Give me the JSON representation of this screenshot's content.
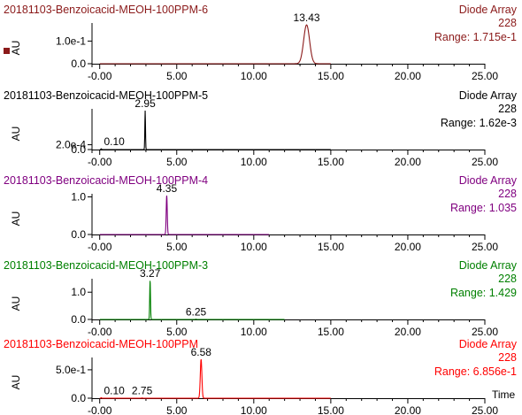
{
  "x_axis_label": "Time",
  "chart_data": [
    {
      "type": "line",
      "title": "20181103-Benzoicacid-MEOH-100PPM-6",
      "detector": "Diode Array",
      "wavelength": "228",
      "range": "Range: 1.715e-1",
      "ylabel": "AU",
      "color": "#8b1a1a",
      "xlim": [
        -0.5,
        25.0
      ],
      "ylim": [
        0,
        0.172
      ],
      "x_ticks": [
        "-0.00",
        "5.00",
        "10.00",
        "15.00",
        "20.00",
        "25.00"
      ],
      "y_ticks": [
        {
          "value": 0.0,
          "label": "0.0"
        },
        {
          "value": 0.1,
          "label": "1.0e-1"
        }
      ],
      "trace_end": 15.0,
      "peaks": [
        {
          "rt": 13.43,
          "height": 0.1715,
          "width": 0.45,
          "label": "13.43"
        }
      ]
    },
    {
      "type": "line",
      "title": "20181103-Benzoicacid-MEOH-100PPM-5",
      "detector": "Diode Array",
      "wavelength": "228",
      "range": "Range: 1.62e-3",
      "ylabel": "AU",
      "color": "#000000",
      "xlim": [
        -0.5,
        25.0
      ],
      "ylim": [
        0,
        0.00162
      ],
      "x_ticks": [
        "-0.00",
        "5.00",
        "10.00",
        "15.00",
        "20.00",
        "25.00"
      ],
      "y_ticks": [
        {
          "value": 0.0,
          "label": "0.0"
        },
        {
          "value": 0.0002,
          "label": "2.0e-4"
        }
      ],
      "trace_end": 15.0,
      "peaks": [
        {
          "rt": 0.1,
          "height": 3e-05,
          "width": 0.05,
          "label": "0.10"
        },
        {
          "rt": 2.95,
          "height": 0.00162,
          "width": 0.05,
          "label": "2.95"
        }
      ]
    },
    {
      "type": "line",
      "title": "20181103-Benzoicacid-MEOH-100PPM-4",
      "detector": "Diode Array",
      "wavelength": "228",
      "range": "Range: 1.035",
      "ylabel": "AU",
      "color": "#800080",
      "xlim": [
        -0.5,
        25.0
      ],
      "ylim": [
        0,
        1.035
      ],
      "x_ticks": [
        "-0.00",
        "5.00",
        "10.00",
        "15.00",
        "20.00",
        "25.00"
      ],
      "y_ticks": [
        {
          "value": 0.0,
          "label": "0.0"
        },
        {
          "value": 1.0,
          "label": "1.0"
        }
      ],
      "trace_end": 11.0,
      "peaks": [
        {
          "rt": 4.35,
          "height": 1.035,
          "width": 0.08,
          "label": "4.35"
        }
      ]
    },
    {
      "type": "line",
      "title": "20181103-Benzoicacid-MEOH-100PPM-3",
      "detector": "Diode Array",
      "wavelength": "228",
      "range": "Range: 1.429",
      "ylabel": "AU",
      "color": "#008000",
      "xlim": [
        -0.5,
        25.0
      ],
      "ylim": [
        0,
        1.429
      ],
      "x_ticks": [
        "-0.00",
        "5.00",
        "10.00",
        "15.00",
        "20.00",
        "25.00"
      ],
      "y_ticks": [
        {
          "value": 0.0,
          "label": "0.0"
        },
        {
          "value": 1.0,
          "label": "1.0"
        }
      ],
      "trace_end": 12.0,
      "peaks": [
        {
          "rt": 3.27,
          "height": 1.429,
          "width": 0.06,
          "label": "3.27"
        },
        {
          "rt": 6.25,
          "height": 0.01,
          "width": 0.05,
          "label": "6.25"
        }
      ]
    },
    {
      "type": "line",
      "title": "20181103-Benzoicacid-MEOH-100PPM",
      "detector": "Diode Array",
      "wavelength": "228",
      "range": "Range: 6.856e-1",
      "ylabel": "AU",
      "color": "#ff0000",
      "xlim": [
        -0.5,
        25.0
      ],
      "ylim": [
        0,
        0.6856
      ],
      "x_ticks": [
        "-0.00",
        "5.00",
        "10.00",
        "15.00",
        "20.00",
        "25.00"
      ],
      "y_ticks": [
        {
          "value": 0.0,
          "label": "0.0"
        },
        {
          "value": 0.5,
          "label": "5.0e-1"
        }
      ],
      "trace_end": 15.0,
      "peaks": [
        {
          "rt": 0.1,
          "height": 0.01,
          "width": 0.05,
          "label": "0.10"
        },
        {
          "rt": 2.75,
          "height": 0.004,
          "width": 0.05,
          "label": "2.75"
        },
        {
          "rt": 6.58,
          "height": 0.6856,
          "width": 0.12,
          "label": "6.58"
        }
      ]
    }
  ]
}
